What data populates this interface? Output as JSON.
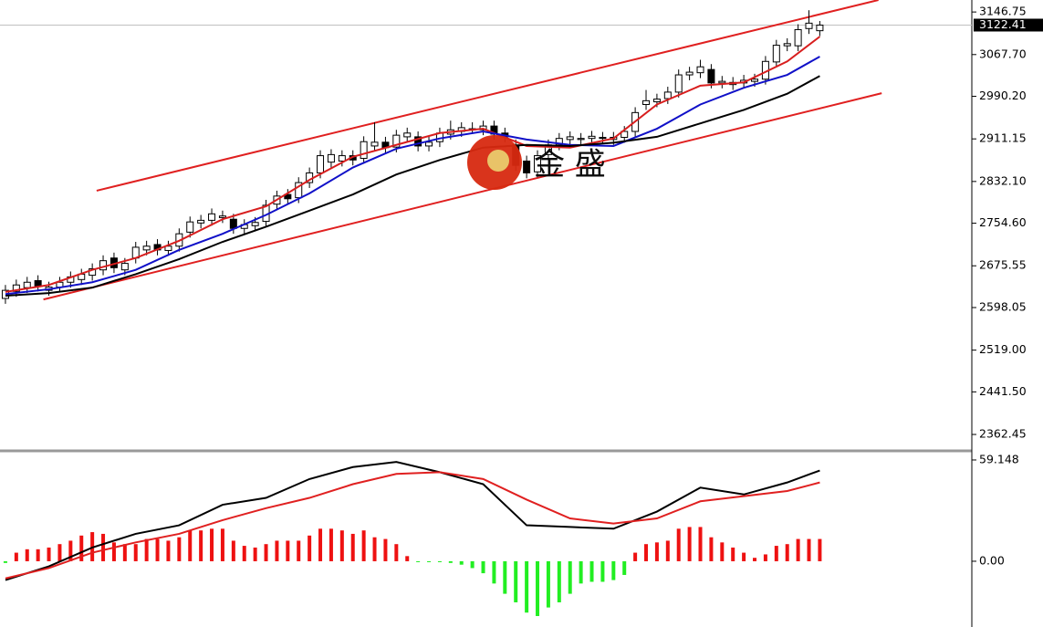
{
  "chart_data": [
    {
      "type": "candlestick",
      "xlim": [
        -0.5,
        89
      ],
      "ylim": [
        2332,
        3169
      ],
      "yticks": [
        3146.75,
        {
          "value": 3067.7,
          "label": "3067.70"
        },
        {
          "value": 2990.2,
          "label": "2990.20"
        },
        2911.15,
        {
          "value": 2832.1,
          "label": "2832.10"
        },
        {
          "value": 2754.6,
          "label": "2754.60"
        },
        2675.55,
        2598.05,
        {
          "value": 2519,
          "label": "2519.00"
        },
        {
          "value": 2441.5,
          "label": "2441.50"
        },
        2362.45
      ],
      "last_price": 3122.41,
      "watermark": "金 盛",
      "up_color": "#ffffff",
      "down_color": "#000000",
      "open": [
        2615,
        2628,
        2635,
        2648,
        2630,
        2636,
        2645,
        2650,
        2658,
        2668,
        2690,
        2668,
        2690,
        2705,
        2715,
        2704,
        2712,
        2738,
        2755,
        2760,
        2765,
        2762,
        2745,
        2750,
        2758,
        2790,
        2808,
        2802,
        2830,
        2848,
        2868,
        2870,
        2880,
        2875,
        2898,
        2905,
        2896,
        2915,
        2915,
        2898,
        2906,
        2920,
        2925,
        2928,
        2928,
        2935,
        2922,
        2900,
        2870,
        2850,
        2882,
        2900,
        2910,
        2910,
        2912,
        2914,
        2910,
        2914,
        2925,
        2975,
        2980,
        2986,
        2998,
        3030,
        3034,
        3040,
        3015,
        3012,
        3015,
        3018,
        3022,
        3054,
        3084,
        3084,
        3116,
        3112
      ],
      "high": [
        2640,
        2650,
        2655,
        2658,
        2646,
        2655,
        2665,
        2670,
        2680,
        2695,
        2700,
        2690,
        2720,
        2722,
        2725,
        2722,
        2745,
        2767,
        2770,
        2782,
        2778,
        2772,
        2762,
        2766,
        2798,
        2815,
        2818,
        2840,
        2858,
        2890,
        2892,
        2890,
        2890,
        2916,
        2942,
        2915,
        2928,
        2932,
        2925,
        2915,
        2932,
        2945,
        2942,
        2942,
        2945,
        2945,
        2932,
        2910,
        2880,
        2890,
        2910,
        2922,
        2925,
        2922,
        2926,
        2924,
        2924,
        2935,
        2970,
        3002,
        2995,
        3008,
        3040,
        3045,
        3058,
        3050,
        3028,
        3026,
        3030,
        3032,
        3065,
        3095,
        3098,
        3124,
        3150,
        3130
      ],
      "low": [
        2605,
        2618,
        2625,
        2628,
        2620,
        2626,
        2635,
        2640,
        2648,
        2658,
        2662,
        2658,
        2680,
        2695,
        2695,
        2694,
        2702,
        2728,
        2745,
        2750,
        2755,
        2735,
        2735,
        2740,
        2748,
        2780,
        2790,
        2792,
        2820,
        2838,
        2858,
        2860,
        2862,
        2865,
        2888,
        2885,
        2886,
        2905,
        2888,
        2888,
        2896,
        2910,
        2915,
        2920,
        2918,
        2910,
        2905,
        2852,
        2838,
        2840,
        2872,
        2890,
        2900,
        2900,
        2902,
        2902,
        2900,
        2904,
        2915,
        2965,
        2970,
        2976,
        2988,
        3020,
        3024,
        3005,
        3005,
        3002,
        3005,
        3008,
        3012,
        3044,
        3074,
        3074,
        3106,
        3102
      ],
      "close": [
        2630,
        2640,
        2645,
        2638,
        2636,
        2645,
        2655,
        2660,
        2670,
        2685,
        2672,
        2680,
        2710,
        2712,
        2705,
        2712,
        2735,
        2757,
        2760,
        2772,
        2768,
        2745,
        2752,
        2756,
        2788,
        2805,
        2800,
        2830,
        2848,
        2880,
        2882,
        2880,
        2872,
        2906,
        2905,
        2895,
        2918,
        2922,
        2898,
        2905,
        2922,
        2928,
        2932,
        2930,
        2935,
        2920,
        2915,
        2862,
        2848,
        2880,
        2900,
        2912,
        2915,
        2912,
        2916,
        2912,
        2914,
        2925,
        2960,
        2982,
        2985,
        2998,
        3030,
        3035,
        3045,
        3015,
        3018,
        3016,
        3020,
        3022,
        3055,
        3085,
        3088,
        3114,
        3126,
        3122.41
      ],
      "lines": [
        {
          "color": "#d81e1e",
          "x": [
            0,
            4,
            8,
            12,
            16,
            20,
            24,
            28,
            32,
            36,
            40,
            44,
            48,
            52,
            56,
            60,
            64,
            68,
            72,
            75
          ],
          "values": [
            2627,
            2640,
            2668,
            2690,
            2722,
            2762,
            2786,
            2835,
            2878,
            2900,
            2922,
            2930,
            2898,
            2895,
            2912,
            2975,
            3010,
            3016,
            3055,
            3101
          ]
        },
        {
          "color": "#1010c8",
          "x": [
            0,
            4,
            8,
            12,
            16,
            20,
            24,
            28,
            32,
            36,
            40,
            44,
            48,
            52,
            56,
            60,
            64,
            68,
            72,
            75
          ],
          "values": [
            2623,
            2632,
            2645,
            2668,
            2705,
            2735,
            2770,
            2810,
            2858,
            2893,
            2912,
            2925,
            2910,
            2900,
            2898,
            2930,
            2975,
            3006,
            3030,
            3064
          ]
        },
        {
          "color": "#000000",
          "x": [
            0,
            4,
            8,
            12,
            16,
            20,
            24,
            28,
            32,
            36,
            40,
            44,
            48,
            52,
            56,
            60,
            64,
            68,
            72,
            75
          ],
          "values": [
            2620,
            2625,
            2635,
            2660,
            2688,
            2720,
            2748,
            2778,
            2808,
            2845,
            2872,
            2895,
            2900,
            2898,
            2904,
            2915,
            2940,
            2965,
            2995,
            3028
          ]
        }
      ],
      "trendlines": [
        {
          "color": "#e02020",
          "x": [
            8.4,
            80.4
          ],
          "y": [
            2815,
            3169
          ]
        },
        {
          "color": "#e02020",
          "x": [
            3.5,
            80.7
          ],
          "y": [
            2613,
            2996
          ]
        }
      ]
    },
    {
      "type": "macd",
      "xlim": [
        -0.5,
        89
      ],
      "ylim": [
        -38.4,
        63.4
      ],
      "yticks": [
        59.148,
        {
          "value": 0,
          "label": "0.00"
        }
      ],
      "up_color": "#ee1111",
      "down_color": "#22ee22",
      "histogram": [
        -1,
        5,
        7,
        7,
        8,
        10,
        12,
        15,
        17,
        16,
        11,
        10,
        10,
        13,
        13,
        12,
        14,
        18,
        18,
        19,
        19,
        12,
        9,
        8,
        10,
        12,
        12,
        12,
        15,
        19,
        19,
        18,
        16,
        18,
        14,
        13,
        10,
        3,
        -0.5,
        -0.5,
        -0.5,
        -1,
        -2,
        -4,
        -7,
        -13,
        -19,
        -24,
        -30,
        -32,
        -27,
        -24,
        -19,
        -13,
        -12,
        -12,
        -11,
        -8,
        5,
        10,
        11,
        12,
        19,
        20,
        20,
        14,
        11,
        8,
        5,
        2,
        4,
        9,
        10,
        13,
        13,
        13
      ],
      "lines": [
        {
          "color": "#000000",
          "x": [
            0,
            4,
            8,
            12,
            16,
            20,
            24,
            28,
            32,
            36,
            40,
            44,
            48,
            52,
            56,
            60,
            64,
            68,
            72,
            75
          ],
          "values": [
            -11,
            -3,
            8,
            16,
            21,
            33,
            37,
            48,
            55,
            58,
            52,
            45,
            21,
            20,
            19,
            29,
            43,
            39,
            46,
            53
          ]
        },
        {
          "color": "#e02020",
          "x": [
            0,
            4,
            8,
            12,
            16,
            20,
            24,
            28,
            32,
            36,
            40,
            44,
            48,
            52,
            56,
            60,
            64,
            68,
            72,
            75
          ],
          "values": [
            -10,
            -4,
            5,
            11,
            16,
            24,
            31,
            37,
            45,
            51,
            52,
            48,
            36,
            25,
            22,
            25,
            35,
            38,
            41,
            46
          ]
        }
      ]
    }
  ]
}
